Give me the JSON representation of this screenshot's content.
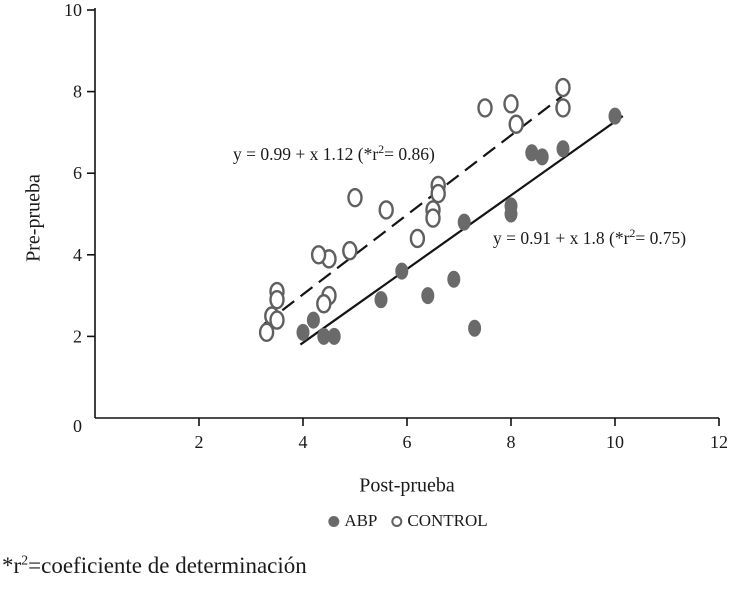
{
  "chart_data": {
    "type": "scatter",
    "title": "",
    "xlabel": "Post-prueba",
    "ylabel": "Pre-prueba",
    "xlim": [
      0,
      12
    ],
    "ylim": [
      0,
      10
    ],
    "xticks": [
      2,
      4,
      6,
      8,
      10,
      12
    ],
    "yticks": [
      2,
      4,
      6,
      8,
      10
    ],
    "origin_label": "0",
    "grid": false,
    "legend_position": "bottom",
    "series": [
      {
        "name": "ABP",
        "marker": "filled",
        "color": "#6a6a6a",
        "points": [
          [
            10.0,
            7.4
          ],
          [
            9.0,
            6.6
          ],
          [
            8.6,
            6.4
          ],
          [
            8.4,
            6.5
          ],
          [
            8.0,
            5.2
          ],
          [
            8.0,
            5.0
          ],
          [
            7.1,
            4.8
          ],
          [
            7.3,
            2.2
          ],
          [
            6.9,
            3.4
          ],
          [
            6.4,
            3.0
          ],
          [
            5.9,
            3.6
          ],
          [
            5.5,
            2.9
          ],
          [
            4.6,
            2.0
          ],
          [
            4.4,
            2.0
          ],
          [
            4.2,
            2.4
          ],
          [
            4.0,
            2.1
          ]
        ]
      },
      {
        "name": "CONTROL",
        "marker": "open",
        "color": "#5f5f5f",
        "points": [
          [
            9.0,
            8.1
          ],
          [
            9.0,
            7.6
          ],
          [
            8.0,
            7.7
          ],
          [
            8.1,
            7.2
          ],
          [
            7.5,
            7.6
          ],
          [
            6.6,
            5.7
          ],
          [
            6.6,
            5.5
          ],
          [
            6.5,
            5.1
          ],
          [
            6.5,
            4.9
          ],
          [
            6.2,
            4.4
          ],
          [
            5.6,
            5.1
          ],
          [
            5.0,
            5.4
          ],
          [
            4.9,
            4.1
          ],
          [
            4.5,
            3.9
          ],
          [
            4.3,
            4.0
          ],
          [
            4.5,
            3.0
          ],
          [
            4.4,
            2.8
          ],
          [
            3.5,
            3.1
          ],
          [
            3.5,
            2.9
          ],
          [
            3.4,
            2.5
          ],
          [
            3.5,
            2.4
          ],
          [
            3.3,
            2.1
          ]
        ]
      }
    ],
    "trendlines": [
      {
        "series": "CONTROL",
        "style": "dashed",
        "x1": 3.25,
        "y1": 2.3,
        "x2": 9.1,
        "y2": 8.0
      },
      {
        "series": "ABP",
        "style": "solid",
        "x1": 3.95,
        "y1": 1.8,
        "x2": 10.15,
        "y2": 7.4
      }
    ],
    "annotations": {
      "control_eq": {
        "before": "y = 0.99 + x 1.12 (*r",
        "sup": "2",
        "after": "= 0.86)"
      },
      "abp_eq": {
        "before": "y = 0.91 + x 1.8 (*r",
        "sup": "2",
        "after": "= 0.75)"
      }
    }
  },
  "footnote": {
    "before": "*r",
    "sup": "2",
    "after": "=coeficiente de determinación"
  }
}
